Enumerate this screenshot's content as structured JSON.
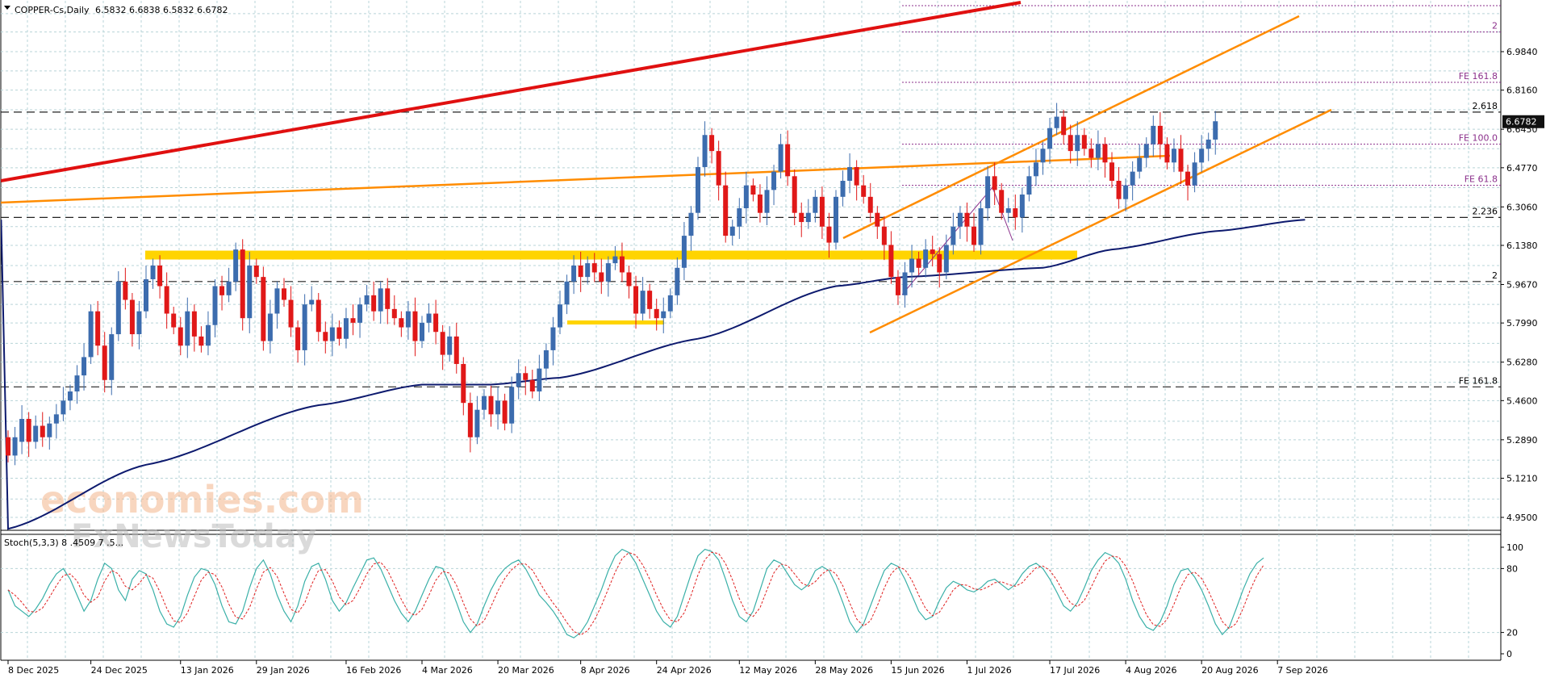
{
  "chart_data": {
    "type": "candlestick",
    "symbol_line": {
      "symbol": "COPPER-Cs,Daily",
      "ohlc": "6.5832 6.6838 6.5832 6.6782"
    },
    "price_axis": {
      "range": [
        4.88,
        7.32
      ],
      "tick_labels": [
        "6.9840",
        "6.8160",
        "6.6450",
        "6.4770",
        "6.3060",
        "6.1380",
        "5.9670",
        "5.7990",
        "5.6280",
        "5.4600",
        "5.2890",
        "5.1210",
        "4.9500"
      ],
      "current_price_label": "6.6782"
    },
    "time_axis": {
      "date_labels": [
        "8 Dec 2025",
        "24 Dec 2025",
        "13 Jan 2026",
        "29 Jan 2026",
        "16 Feb 2026",
        "4 Mar 2026",
        "20 Mar 2026",
        "8 Apr 2026",
        "24 Apr 2026",
        "12 May 2026",
        "28 May 2026",
        "15 Jun 2026",
        "1 Jul 2026",
        "17 Jul 2026",
        "4 Aug 2026",
        "20 Aug 2026",
        "7 Sep 2026"
      ],
      "label_bar_index": [
        0,
        12,
        25,
        36,
        49,
        60,
        71,
        83,
        94,
        106,
        117,
        128,
        139,
        151,
        162,
        173,
        184
      ]
    },
    "candles_open_close": [
      [
        5.3,
        5.22
      ],
      [
        5.22,
        5.3
      ],
      [
        5.28,
        5.38
      ],
      [
        5.38,
        5.28
      ],
      [
        5.28,
        5.35
      ],
      [
        5.35,
        5.3
      ],
      [
        5.3,
        5.36
      ],
      [
        5.36,
        5.4
      ],
      [
        5.4,
        5.46
      ],
      [
        5.46,
        5.5
      ],
      [
        5.5,
        5.57
      ],
      [
        5.57,
        5.65
      ],
      [
        5.65,
        5.85
      ],
      [
        5.85,
        5.7
      ],
      [
        5.7,
        5.55
      ],
      [
        5.55,
        5.75
      ],
      [
        5.75,
        5.98
      ],
      [
        5.98,
        5.9
      ],
      [
        5.9,
        5.75
      ],
      [
        5.75,
        5.85
      ],
      [
        5.85,
        5.99
      ],
      [
        5.99,
        6.05
      ],
      [
        6.05,
        5.96
      ],
      [
        5.96,
        5.84
      ],
      [
        5.84,
        5.78
      ],
      [
        5.78,
        5.7
      ],
      [
        5.7,
        5.85
      ],
      [
        5.85,
        5.74
      ],
      [
        5.74,
        5.7
      ],
      [
        5.7,
        5.79
      ],
      [
        5.79,
        5.96
      ],
      [
        5.96,
        5.92
      ],
      [
        5.92,
        5.98
      ],
      [
        5.98,
        6.12
      ],
      [
        6.12,
        5.82
      ],
      [
        5.82,
        6.05
      ],
      [
        6.05,
        6.0
      ],
      [
        6.0,
        5.72
      ],
      [
        5.72,
        5.84
      ],
      [
        5.84,
        5.95
      ],
      [
        5.95,
        5.9
      ],
      [
        5.9,
        5.78
      ],
      [
        5.78,
        5.68
      ],
      [
        5.68,
        5.88
      ],
      [
        5.88,
        5.9
      ],
      [
        5.9,
        5.76
      ],
      [
        5.76,
        5.72
      ],
      [
        5.72,
        5.78
      ],
      [
        5.78,
        5.73
      ],
      [
        5.73,
        5.82
      ],
      [
        5.82,
        5.8
      ],
      [
        5.8,
        5.88
      ],
      [
        5.88,
        5.92
      ],
      [
        5.92,
        5.85
      ],
      [
        5.85,
        5.95
      ],
      [
        5.95,
        5.86
      ],
      [
        5.86,
        5.82
      ],
      [
        5.82,
        5.78
      ],
      [
        5.78,
        5.85
      ],
      [
        5.85,
        5.72
      ],
      [
        5.72,
        5.8
      ],
      [
        5.8,
        5.84
      ],
      [
        5.84,
        5.76
      ],
      [
        5.76,
        5.66
      ],
      [
        5.66,
        5.74
      ],
      [
        5.74,
        5.62
      ],
      [
        5.62,
        5.45
      ],
      [
        5.45,
        5.3
      ],
      [
        5.3,
        5.42
      ],
      [
        5.42,
        5.48
      ],
      [
        5.48,
        5.4
      ],
      [
        5.4,
        5.46
      ],
      [
        5.46,
        5.36
      ],
      [
        5.36,
        5.52
      ],
      [
        5.52,
        5.58
      ],
      [
        5.58,
        5.55
      ],
      [
        5.55,
        5.5
      ],
      [
        5.5,
        5.6
      ],
      [
        5.6,
        5.68
      ],
      [
        5.68,
        5.78
      ],
      [
        5.78,
        5.88
      ],
      [
        5.88,
        5.98
      ],
      [
        5.98,
        6.05
      ],
      [
        6.05,
        6.0
      ],
      [
        6.0,
        6.06
      ],
      [
        6.06,
        6.02
      ],
      [
        6.02,
        5.98
      ],
      [
        5.98,
        6.06
      ],
      [
        6.06,
        6.09
      ],
      [
        6.09,
        6.02
      ],
      [
        6.02,
        5.96
      ],
      [
        5.96,
        5.84
      ],
      [
        5.84,
        5.94
      ],
      [
        5.94,
        5.86
      ],
      [
        5.86,
        5.82
      ],
      [
        5.82,
        5.85
      ],
      [
        5.85,
        5.92
      ],
      [
        5.92,
        6.04
      ],
      [
        6.04,
        6.18
      ],
      [
        6.18,
        6.28
      ],
      [
        6.28,
        6.48
      ],
      [
        6.48,
        6.62
      ],
      [
        6.62,
        6.55
      ],
      [
        6.55,
        6.4
      ],
      [
        6.4,
        6.18
      ],
      [
        6.18,
        6.22
      ],
      [
        6.22,
        6.3
      ],
      [
        6.3,
        6.4
      ],
      [
        6.4,
        6.36
      ],
      [
        6.36,
        6.28
      ],
      [
        6.28,
        6.38
      ],
      [
        6.38,
        6.46
      ],
      [
        6.46,
        6.58
      ],
      [
        6.58,
        6.44
      ],
      [
        6.44,
        6.28
      ],
      [
        6.28,
        6.24
      ],
      [
        6.24,
        6.28
      ],
      [
        6.28,
        6.35
      ],
      [
        6.35,
        6.22
      ],
      [
        6.22,
        6.15
      ],
      [
        6.15,
        6.35
      ],
      [
        6.35,
        6.42
      ],
      [
        6.42,
        6.48
      ],
      [
        6.48,
        6.4
      ],
      [
        6.4,
        6.35
      ],
      [
        6.35,
        6.28
      ],
      [
        6.28,
        6.22
      ],
      [
        6.22,
        6.14
      ],
      [
        6.14,
        6.0
      ],
      [
        6.0,
        5.92
      ],
      [
        5.92,
        6.02
      ],
      [
        6.02,
        6.08
      ],
      [
        6.08,
        6.04
      ],
      [
        6.04,
        6.12
      ],
      [
        6.12,
        6.1
      ],
      [
        6.1,
        6.02
      ],
      [
        6.02,
        6.14
      ],
      [
        6.14,
        6.22
      ],
      [
        6.22,
        6.28
      ],
      [
        6.28,
        6.22
      ],
      [
        6.22,
        6.14
      ],
      [
        6.14,
        6.3
      ],
      [
        6.3,
        6.44
      ],
      [
        6.44,
        6.38
      ],
      [
        6.38,
        6.28
      ],
      [
        6.28,
        6.3
      ],
      [
        6.3,
        6.26
      ],
      [
        6.26,
        6.36
      ],
      [
        6.36,
        6.44
      ],
      [
        6.44,
        6.5
      ],
      [
        6.5,
        6.56
      ],
      [
        6.56,
        6.65
      ],
      [
        6.65,
        6.7
      ],
      [
        6.7,
        6.62
      ],
      [
        6.62,
        6.55
      ],
      [
        6.55,
        6.62
      ],
      [
        6.62,
        6.56
      ],
      [
        6.56,
        6.52
      ],
      [
        6.52,
        6.58
      ],
      [
        6.58,
        6.5
      ],
      [
        6.5,
        6.42
      ],
      [
        6.42,
        6.34
      ],
      [
        6.34,
        6.4
      ],
      [
        6.4,
        6.46
      ],
      [
        6.46,
        6.52
      ],
      [
        6.52,
        6.58
      ],
      [
        6.58,
        6.66
      ],
      [
        6.66,
        6.58
      ],
      [
        6.58,
        6.5
      ],
      [
        6.5,
        6.56
      ],
      [
        6.56,
        6.46
      ],
      [
        6.46,
        6.4
      ],
      [
        6.4,
        6.5
      ],
      [
        6.5,
        6.56
      ],
      [
        6.56,
        6.6
      ],
      [
        6.6,
        6.68
      ]
    ],
    "moving_average": {
      "anchors_bar_price": [
        [
          0,
          4.9
        ],
        [
          20,
          5.18
        ],
        [
          45,
          5.44
        ],
        [
          60,
          5.53
        ],
        [
          70,
          5.53
        ],
        [
          80,
          5.56
        ],
        [
          100,
          5.73
        ],
        [
          120,
          5.96
        ],
        [
          130,
          6.0
        ],
        [
          150,
          6.04
        ],
        [
          160,
          6.12
        ],
        [
          175,
          6.2
        ],
        [
          188,
          6.25
        ]
      ]
    },
    "levels": [
      {
        "label": "2.618",
        "price": 6.72
      },
      {
        "label": "2.236",
        "price": 6.26
      },
      {
        "label": "2",
        "price": 5.98
      },
      {
        "label": "FE 161.8",
        "price": 5.52
      }
    ],
    "fe_levels": [
      {
        "label": "2",
        "price": 7.07
      },
      {
        "label": "FE 161.8",
        "price": 6.85
      },
      {
        "label": "FE 100.0",
        "price": 6.58
      },
      {
        "label": "FE 61.8",
        "price": 6.4
      }
    ],
    "stochastic": {
      "label": "Stoch(5,3,3) 8 .4509 7 .5...",
      "axis_labels": [
        "100",
        "80",
        "20",
        "0"
      ],
      "k_values": [
        60,
        45,
        40,
        35,
        42,
        52,
        65,
        75,
        80,
        70,
        55,
        40,
        50,
        70,
        85,
        80,
        60,
        50,
        70,
        78,
        75,
        60,
        40,
        28,
        25,
        35,
        55,
        72,
        80,
        78,
        65,
        45,
        30,
        28,
        40,
        62,
        80,
        88,
        75,
        55,
        40,
        30,
        45,
        68,
        82,
        85,
        70,
        50,
        40,
        48,
        62,
        75,
        88,
        90,
        80,
        65,
        50,
        38,
        30,
        40,
        55,
        70,
        82,
        80,
        65,
        48,
        30,
        20,
        28,
        45,
        60,
        72,
        80,
        85,
        88,
        80,
        68,
        55,
        48,
        40,
        30,
        18,
        15,
        20,
        30,
        45,
        60,
        78,
        92,
        98,
        95,
        85,
        70,
        55,
        40,
        30,
        25,
        35,
        55,
        75,
        92,
        98,
        96,
        88,
        70,
        50,
        35,
        30,
        40,
        60,
        80,
        88,
        85,
        75,
        65,
        60,
        65,
        78,
        82,
        78,
        65,
        48,
        30,
        20,
        28,
        45,
        62,
        78,
        85,
        82,
        70,
        55,
        40,
        32,
        35,
        50,
        62,
        68,
        65,
        60,
        58,
        62,
        68,
        70,
        65,
        60,
        65,
        75,
        82,
        85,
        80,
        70,
        58,
        45,
        40,
        48,
        62,
        78,
        88,
        95,
        92,
        85,
        70,
        50,
        35,
        25,
        22,
        30,
        45,
        65,
        78,
        80,
        72,
        60,
        45,
        28,
        18,
        25,
        42,
        60,
        75,
        85,
        90
      ]
    },
    "watermark": [
      "economies.com",
      "FxNewsToday"
    ]
  }
}
